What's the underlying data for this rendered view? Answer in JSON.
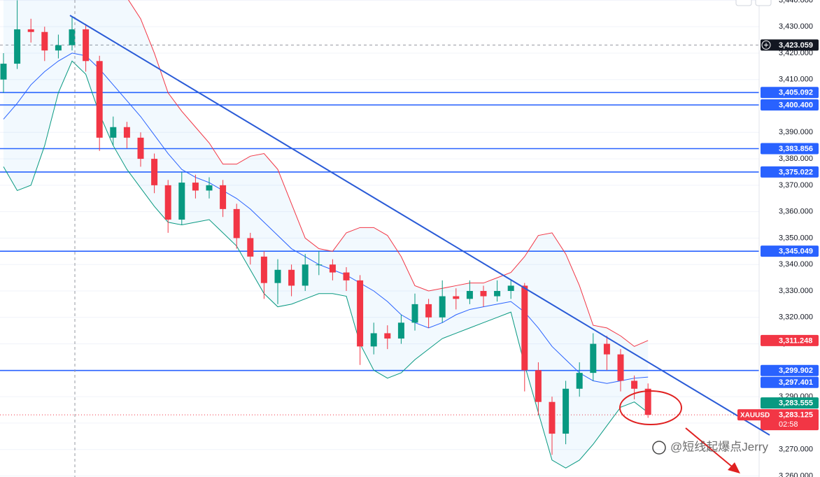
{
  "chart_data": {
    "type": "candlestick",
    "symbol": "XAUUSD",
    "countdown": "02:58",
    "watermark": "@短线起爆点Jerry",
    "ylim": [
      3259.6,
      3440.1
    ],
    "yticks": [
      {
        "value": 3260,
        "label": "3,260.000"
      },
      {
        "value": 3270,
        "label": "3,270.000"
      },
      {
        "value": 3280,
        "label": "3,280.000"
      },
      {
        "value": 3290,
        "label": "3,290.000"
      },
      {
        "value": 3300,
        "label": "3,300.000"
      },
      {
        "value": 3310,
        "label": "3,310.000"
      },
      {
        "value": 3320,
        "label": "3,320.000"
      },
      {
        "value": 3330,
        "label": "3,330.000"
      },
      {
        "value": 3340,
        "label": "3,340.000"
      },
      {
        "value": 3350,
        "label": "3,350.000"
      },
      {
        "value": 3360,
        "label": "3,360.000"
      },
      {
        "value": 3370,
        "label": "3,370.000"
      },
      {
        "value": 3380,
        "label": "3,380.000"
      },
      {
        "value": 3390,
        "label": "3,390.000"
      },
      {
        "value": 3400,
        "label": "3,400.000"
      },
      {
        "value": 3410,
        "label": "3,410.000"
      },
      {
        "value": 3420,
        "label": "3,420.000"
      },
      {
        "value": 3430,
        "label": "3,430.000"
      },
      {
        "value": 3440,
        "label": "3,440.000"
      }
    ],
    "grid": true,
    "up_color": "#089981",
    "down_color": "#f23645",
    "candles": {
      "open": [
        3410,
        3416,
        3429,
        3428,
        3421,
        3423,
        3429,
        3417,
        3388,
        3392,
        3388,
        3380,
        3370,
        3357,
        3371,
        3368,
        3370,
        3361,
        3350,
        3343,
        3333,
        3338,
        3332,
        3340,
        3340,
        3337,
        3334,
        3309,
        3314,
        3312,
        3318,
        3325,
        3320,
        3328,
        3327,
        3330,
        3328,
        3330,
        3332,
        3300,
        3288,
        3276,
        3293,
        3299,
        3310,
        3306,
        3296,
        3293
      ],
      "high": [
        3420,
        3440,
        3433,
        3430,
        3427,
        3434,
        3431,
        3419,
        3396,
        3394,
        3390,
        3382,
        3372,
        3375,
        3374,
        3373,
        3372,
        3363,
        3352,
        3345,
        3342,
        3340,
        3344,
        3345,
        3342,
        3339,
        3336,
        3318,
        3317,
        3321,
        3329,
        3327,
        3334,
        3331,
        3334,
        3332,
        3334,
        3334,
        3333,
        3303,
        3290,
        3296,
        3303,
        3314,
        3313,
        3308,
        3298,
        3295
      ],
      "low": [
        3405,
        3414,
        3424,
        3417,
        3418,
        3421,
        3413,
        3383,
        3385,
        3384,
        3377,
        3367,
        3352,
        3355,
        3365,
        3365,
        3358,
        3346,
        3340,
        3327,
        3325,
        3328,
        3330,
        3336,
        3334,
        3330,
        3302,
        3306,
        3308,
        3310,
        3315,
        3316,
        3318,
        3323,
        3325,
        3324,
        3326,
        3327,
        3292,
        3283,
        3268,
        3272,
        3290,
        3296,
        3300,
        3292,
        3289,
        3282
      ],
      "close": [
        3416,
        3429,
        3428,
        3421,
        3423,
        3429,
        3417,
        3388,
        3392,
        3388,
        3380,
        3370,
        3357,
        3371,
        3368,
        3370,
        3361,
        3350,
        3343,
        3333,
        3338,
        3332,
        3340,
        3340,
        3337,
        3334,
        3309,
        3314,
        3312,
        3318,
        3325,
        3320,
        3328,
        3327,
        3330,
        3328,
        3330,
        3332,
        3300,
        3288,
        3276,
        3293,
        3299,
        3310,
        3306,
        3296,
        3293,
        3283.125
      ]
    },
    "bands": {
      "upper": {
        "color": "#f23645",
        "values": [
          3452,
          3456,
          3460,
          3462,
          3462,
          3460,
          3456,
          3450,
          3446,
          3441,
          3433,
          3420,
          3405,
          3398,
          3392,
          3386,
          3378,
          3378,
          3381,
          3382,
          3376,
          3363,
          3350,
          3346,
          3345,
          3352,
          3354,
          3354,
          3351,
          3343,
          3332,
          3330,
          3331,
          3332,
          3333,
          3333,
          3335,
          3337,
          3343,
          3351,
          3352,
          3344,
          3332,
          3317,
          3316,
          3313,
          3309,
          3311.248
        ]
      },
      "middle": {
        "color": "#2962ff",
        "values": [
          3395,
          3401,
          3408,
          3413,
          3417,
          3420,
          3419,
          3414,
          3408,
          3402,
          3396,
          3389,
          3382,
          3376,
          3373,
          3371,
          3368,
          3365,
          3361,
          3356,
          3351,
          3346,
          3343,
          3340,
          3338,
          3336,
          3333,
          3330,
          3326,
          3321,
          3318,
          3316,
          3318,
          3321,
          3323,
          3324,
          3325,
          3326,
          3322,
          3316,
          3309,
          3304,
          3299,
          3296,
          3295,
          3296,
          3297,
          3297.401
        ]
      },
      "lower": {
        "color": "#089981",
        "values": [
          3377,
          3368,
          3370,
          3385,
          3405,
          3417,
          3412,
          3397,
          3385,
          3376,
          3369,
          3362,
          3356,
          3355,
          3356,
          3357,
          3352,
          3347,
          3338,
          3329,
          3324,
          3325,
          3327,
          3329,
          3329,
          3328,
          3310,
          3300,
          3297,
          3299,
          3304,
          3308,
          3312,
          3314,
          3316,
          3318,
          3320,
          3322,
          3302,
          3284,
          3266,
          3263,
          3266,
          3272,
          3279,
          3286,
          3288,
          3284
        ]
      }
    },
    "levels": {
      "color": "#2962ff",
      "lines": [
        {
          "value": 3405.092,
          "label": "3,405.092"
        },
        {
          "value": 3400.4,
          "label": "3,400.400"
        },
        {
          "value": 3383.856,
          "label": "3,383.856"
        },
        {
          "value": 3375.022,
          "label": "3,375.022"
        },
        {
          "value": 3345.049,
          "label": "3,345.049"
        },
        {
          "value": 3299.902,
          "label": "3,299.902"
        }
      ]
    },
    "current_price": {
      "value": 3283.125,
      "label": "3,283.125",
      "color": "#f23645"
    },
    "tags": [
      {
        "value": 3423.059,
        "label": "3,423.059",
        "color": "#131722"
      },
      {
        "value": 3311.248,
        "label": "3,311.248",
        "color": "#f23645"
      },
      {
        "value": 3297.401,
        "label": "3,297.401",
        "color": "#2962ff"
      },
      {
        "value": 3283.555,
        "label": "3,283.555",
        "color": "#089981"
      }
    ]
  }
}
